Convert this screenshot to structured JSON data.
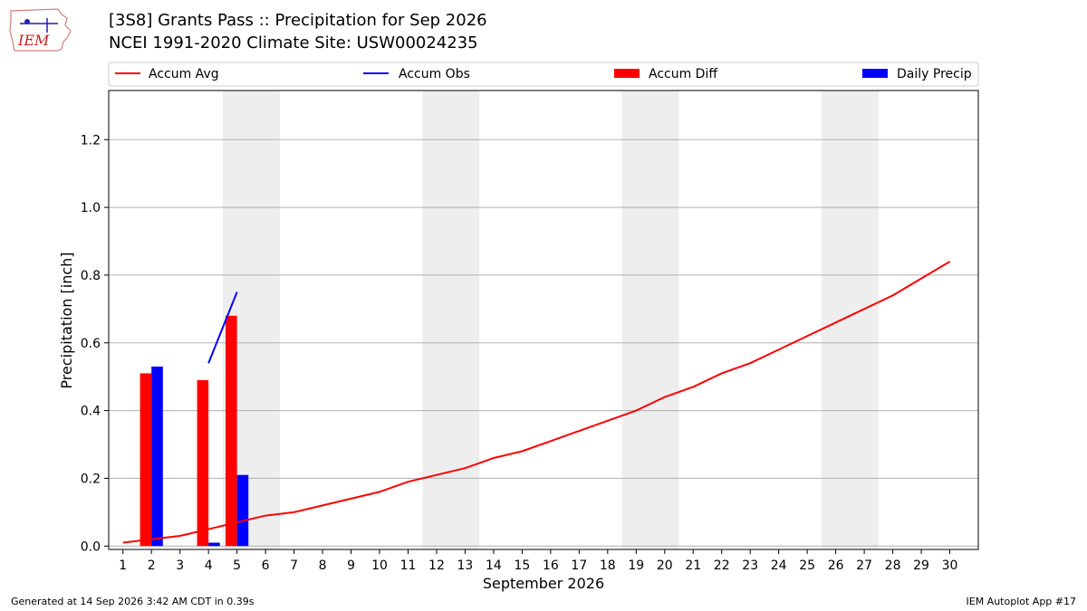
{
  "header": {
    "title_line1": "[3S8] Grants Pass :: Precipitation for Sep 2026",
    "title_line2": "NCEI 1991-2020 Climate Site: USW00024235"
  },
  "logo": {
    "text": "IEM"
  },
  "footer": {
    "generated": "Generated at 14 Sep 2026 3:42 AM CDT in 0.39s",
    "app": "IEM Autoplot App #17"
  },
  "colors": {
    "avg": "#ff0000",
    "obs": "#0000ff",
    "diff": "#ff0000",
    "daily": "#0000ff",
    "weekend": "#eeeeee",
    "grid": "#b0b0b0"
  },
  "chart_data": {
    "type": "bar",
    "xlabel": "September 2026",
    "ylabel": "Precipitation [inch]",
    "xlim": [
      0.5,
      31
    ],
    "ylim": [
      -0.01,
      1.345
    ],
    "x_ticks": [
      "1",
      "2",
      "3",
      "4",
      "5",
      "6",
      "7",
      "8",
      "9",
      "10",
      "11",
      "12",
      "13",
      "14",
      "15",
      "16",
      "17",
      "18",
      "19",
      "20",
      "21",
      "22",
      "23",
      "24",
      "25",
      "26",
      "27",
      "28",
      "29",
      "30"
    ],
    "y_ticks": [
      "0.0",
      "0.2",
      "0.4",
      "0.6",
      "0.8",
      "1.0",
      "1.2"
    ],
    "y_tick_values": [
      0.0,
      0.2,
      0.4,
      0.6,
      0.8,
      1.0,
      1.2
    ],
    "grid": "horizontal",
    "legend_position": "top",
    "weekend_shading": [
      [
        4.5,
        6.5
      ],
      [
        11.5,
        13.5
      ],
      [
        18.5,
        20.5
      ],
      [
        25.5,
        27.5
      ]
    ],
    "series": [
      {
        "name": "Accum Avg",
        "kind": "line",
        "x": [
          1,
          2,
          3,
          4,
          5,
          6,
          7,
          8,
          9,
          10,
          11,
          12,
          13,
          14,
          15,
          16,
          17,
          18,
          19,
          20,
          21,
          22,
          23,
          24,
          25,
          26,
          27,
          28,
          29,
          30
        ],
        "values": [
          0.01,
          0.02,
          0.03,
          0.05,
          0.07,
          0.09,
          0.1,
          0.12,
          0.14,
          0.16,
          0.19,
          0.21,
          0.23,
          0.26,
          0.28,
          0.31,
          0.34,
          0.37,
          0.4,
          0.44,
          0.47,
          0.51,
          0.54,
          0.58,
          0.62,
          0.66,
          0.7,
          0.74,
          0.79,
          0.84
        ]
      },
      {
        "name": "Accum Obs",
        "kind": "line",
        "x": [
          4,
          5
        ],
        "values": [
          0.54,
          0.75
        ]
      },
      {
        "name": "Accum Diff",
        "kind": "bar",
        "x": [
          2,
          4,
          5
        ],
        "values": [
          0.51,
          0.49,
          0.68
        ]
      },
      {
        "name": "Daily Precip",
        "kind": "bar",
        "x": [
          2,
          4,
          5
        ],
        "values": [
          0.53,
          0.01,
          0.21
        ]
      }
    ]
  }
}
